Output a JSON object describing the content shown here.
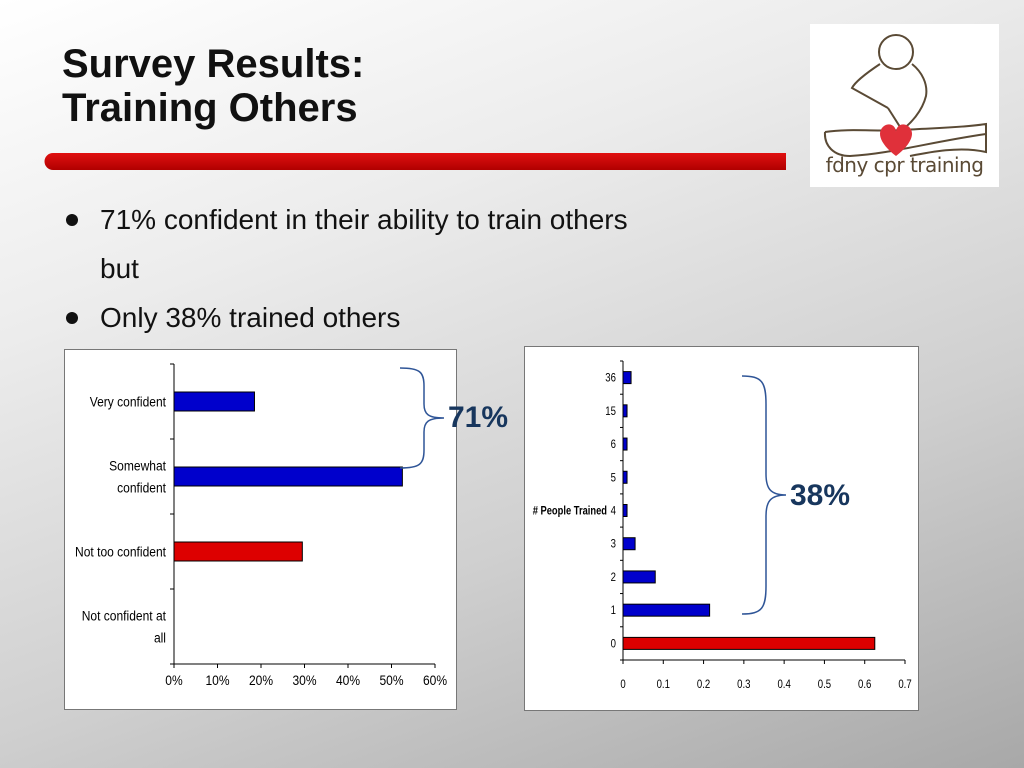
{
  "slide": {
    "title_line1": "Survey Results:",
    "title_line2": "Training Others",
    "bullets": [
      "71% confident in their ability to train others",
      "but",
      "Only 38% trained others"
    ],
    "logo_text": "fdny cpr training",
    "callout_left": "71%",
    "callout_right": "38%",
    "colors": {
      "rule": "#cc0000",
      "blue_bar": "#0000cc",
      "red_bar": "#dd0000",
      "callout": "#17365d",
      "brace": "#2f5597"
    }
  },
  "chart_data": [
    {
      "type": "bar",
      "orientation": "horizontal",
      "categories": [
        "Very confident",
        "Somewhat confident",
        "Not too confident",
        "Not confident at all"
      ],
      "category_lines": [
        [
          "Very confident"
        ],
        [
          "Somewhat",
          "confident"
        ],
        [
          "Not too confident"
        ],
        [
          "Not confident at",
          "all"
        ]
      ],
      "values": [
        0.185,
        0.525,
        0.295,
        0
      ],
      "bar_colors": [
        "#0000cc",
        "#0000cc",
        "#dd0000",
        "#0000cc"
      ],
      "xlim": [
        0,
        0.6
      ],
      "xticks": [
        0,
        0.1,
        0.2,
        0.3,
        0.4,
        0.5,
        0.6
      ],
      "xtick_labels": [
        "0%",
        "10%",
        "20%",
        "30%",
        "40%",
        "50%",
        "60%"
      ],
      "xlabel": "",
      "ylabel": "",
      "grid": false
    },
    {
      "type": "bar",
      "orientation": "horizontal",
      "categories": [
        "36",
        "15",
        "6",
        "5",
        "4",
        "3",
        "2",
        "1",
        "0"
      ],
      "values": [
        0.02,
        0.01,
        0.01,
        0.01,
        0.01,
        0.03,
        0.08,
        0.215,
        0.625
      ],
      "bar_colors": [
        "#0000cc",
        "#0000cc",
        "#0000cc",
        "#0000cc",
        "#0000cc",
        "#0000cc",
        "#0000cc",
        "#0000cc",
        "#dd0000"
      ],
      "xlim": [
        0,
        0.7
      ],
      "xticks": [
        0,
        0.1,
        0.2,
        0.3,
        0.4,
        0.5,
        0.6,
        0.7
      ],
      "xtick_labels": [
        "0",
        "0.1",
        "0.2",
        "0.3",
        "0.4",
        "0.5",
        "0.6",
        "0.7"
      ],
      "ylabel": "# People Trained",
      "xlabel": "",
      "grid": false
    }
  ]
}
